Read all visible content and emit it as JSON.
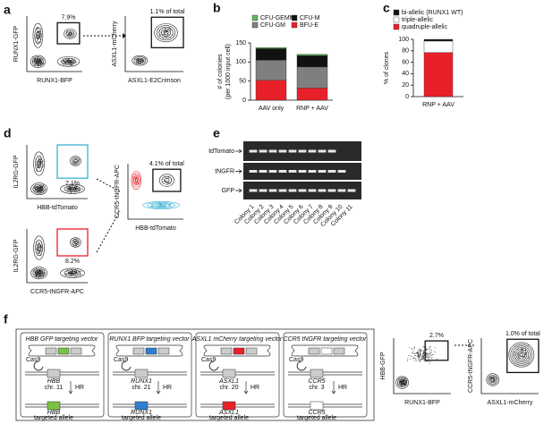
{
  "panel_labels": [
    "a",
    "b",
    "c",
    "d",
    "e",
    "f"
  ],
  "a": {
    "plot1": {
      "ylabel": "RUNX1-GFP",
      "xlabel": "RUNX1-BFP",
      "gate": "7.9%"
    },
    "plot2": {
      "ylabel": "ASXL1-mCherry",
      "xlabel": "ASXL1-E2Crimson",
      "gate": "1.1% of total"
    }
  },
  "d": {
    "plot1": {
      "ylabel": "IL2RG-GFP",
      "xlabel": "HBB-tdTomato",
      "gate": "7.1%"
    },
    "plot2": {
      "ylabel": "CCR5-tNGFR-APC",
      "xlabel": "HBB-tdTomato",
      "gate": "4.1% of total"
    },
    "plot3": {
      "ylabel": "IL2RG-GFP",
      "xlabel": "CCR5-tNGFR-APC",
      "gate": "8.2%"
    }
  },
  "e": {
    "rows": [
      "tdTomato",
      "tNGFR",
      "GFP"
    ],
    "lanes": [
      "Colony 1",
      "Colony 2",
      "Colony 3",
      "Colony 4",
      "Colony 5",
      "Colony 6",
      "Colony 7",
      "Colony 8",
      "Colony 9",
      "Colony 10",
      "Colony 11"
    ]
  },
  "f": {
    "vectors": [
      {
        "title": "HBB GFP targeting vector",
        "cas9": "Cas9",
        "gene": "HBB",
        "chr": "chr. 11",
        "hr": "HR",
        "allele_gene": "HBB",
        "allele": "targeted allele",
        "color": "#7dc242"
      },
      {
        "title": "RUNX1 BFP targeting vector",
        "cas9": "Cas9",
        "gene": "RUNX1",
        "chr": "chr. 21",
        "hr": "HR",
        "allele_gene": "RUNX1",
        "allele": "targeted allele",
        "color": "#2f7fd0"
      },
      {
        "title": "ASXL1 mCherry targeting vector",
        "cas9": "Cas9",
        "gene": "ASXL1",
        "chr": "chr. 20",
        "hr": "HR",
        "allele_gene": "ASXL1",
        "allele": "targeted allele",
        "color": "#e8202a"
      },
      {
        "title": "CCR5 tNGFR targeting vector",
        "cas9": "Cas9",
        "gene": "CCR5",
        "chr": "chr. 3",
        "hr": "HR",
        "allele_gene": "CCR5",
        "allele": "targeted allele",
        "color": "#ffffff"
      }
    ],
    "plot1": {
      "ylabel": "HBB-GFP",
      "xlabel": "RUNX1-BFP",
      "gate": "2.7%"
    },
    "plot2": {
      "ylabel": "CCR5-tNGFR-APC",
      "xlabel": "ASXL1-mCherry",
      "gate": "1.0% of total"
    }
  },
  "chart_data": [
    {
      "type": "bar",
      "stacked": true,
      "ylabel": [
        "# of colonies",
        "(per 1000 input cell)"
      ],
      "categories": [
        "AAV only",
        "RNP + AAV"
      ],
      "ylim": [
        0,
        150
      ],
      "yticks": [
        0,
        50,
        100,
        150
      ],
      "series": [
        {
          "name": "BFU-E",
          "color": "#e8202a",
          "values": [
            52,
            32
          ]
        },
        {
          "name": "CFU-GM",
          "color": "#7f7f7f",
          "values": [
            53,
            55
          ]
        },
        {
          "name": "CFU-M",
          "color": "#111111",
          "values": [
            30,
            30
          ]
        },
        {
          "name": "CFU-GEMM",
          "color": "#5cb85c",
          "values": [
            3,
            3
          ]
        }
      ]
    },
    {
      "type": "bar",
      "stacked": true,
      "ylabel": "% of clones",
      "categories": [
        "RNP + AAV"
      ],
      "ylim": [
        0,
        100
      ],
      "yticks": [
        0,
        20,
        40,
        60,
        80,
        100
      ],
      "series": [
        {
          "name": "quadruple-allelic",
          "color": "#e8202a",
          "values": [
            77
          ]
        },
        {
          "name": "triple-allelic",
          "color": "#ffffff",
          "values": [
            20
          ]
        },
        {
          "name": "bi-allelic (RUNX1 WT)",
          "color": "#111111",
          "values": [
            3
          ]
        }
      ]
    }
  ]
}
